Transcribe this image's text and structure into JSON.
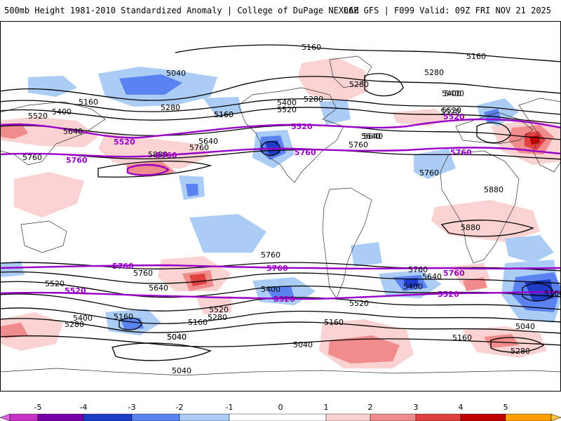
{
  "header": {
    "title": "500mb Height 1981-2010 Standardized Anomaly | College of DuPage NEXLAB",
    "run_info": "06Z GFS | F099 Valid: 09Z FRI NOV 21 2025"
  },
  "colors": {
    "purple_contour": "#9900c8",
    "black_contour": "#000000",
    "neg5": "#c832c8",
    "neg4": "#7800aa",
    "neg3": "#1e3cc8",
    "neg2": "#5a82f0",
    "neg1": "#aaccf5",
    "neutral": "#ffffff",
    "pos1": "#fad2d2",
    "pos2": "#f08c8c",
    "pos3": "#e04040",
    "pos4": "#c00000",
    "pos5": "#ffa000"
  },
  "colorbar": {
    "ticks": [
      "-5",
      "-4",
      "-3",
      "-2",
      "-1",
      "0",
      "1",
      "2",
      "3",
      "4",
      "5"
    ]
  },
  "map_labels": {
    "black": [
      "5160",
      "5160",
      "5040",
      "5280",
      "5160",
      "5400",
      "5520",
      "5640",
      "5160",
      "5280",
      "5400",
      "5520",
      "5160",
      "5280",
      "5400",
      "5520",
      "5640",
      "5760",
      "5640",
      "5760",
      "5280",
      "5400",
      "5520",
      "5640",
      "5760",
      "5880",
      "5760",
      "5880",
      "5880",
      "5760",
      "5760",
      "5640",
      "5520",
      "5400",
      "5280",
      "5160",
      "5040",
      "5040",
      "5400",
      "5520",
      "5160",
      "5040",
      "5640",
      "5760",
      "5400",
      "5160",
      "5280",
      "5040",
      "5280",
      "5160",
      "5520",
      "5160",
      "5040"
    ],
    "purple": [
      "5520",
      "5520",
      "5520",
      "5760",
      "5760",
      "5760",
      "5760",
      "5760",
      "5760",
      "5760",
      "5520",
      "5520",
      "5520"
    ]
  }
}
